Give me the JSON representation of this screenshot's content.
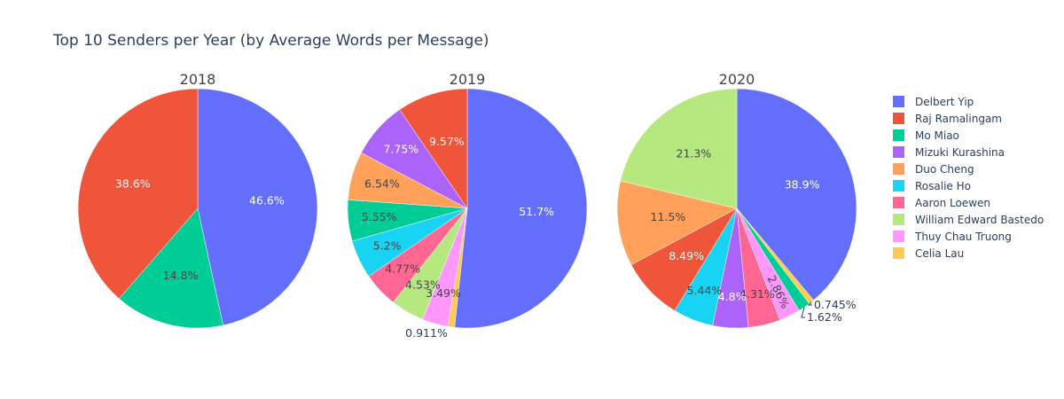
{
  "chart_data": {
    "type": "pie",
    "title": "Top 10 Senders per Year (by Average Words per Message)",
    "legend": {
      "placement": "right",
      "entries": [
        {
          "name": "Delbert Yip",
          "color": "#636efa"
        },
        {
          "name": "Raj Ramalingam",
          "color": "#ef553b"
        },
        {
          "name": "Mo Miao",
          "color": "#00cc96"
        },
        {
          "name": "Mizuki Kurashina",
          "color": "#ab63fa"
        },
        {
          "name": "Duo Cheng",
          "color": "#ffa15a"
        },
        {
          "name": "Rosalie Ho",
          "color": "#19d3f3"
        },
        {
          "name": "Aaron Loewen",
          "color": "#ff6692"
        },
        {
          "name": "William Edward Bastedo",
          "color": "#b6e880"
        },
        {
          "name": "Thuy Chau Truong",
          "color": "#ff97ff"
        },
        {
          "name": "Celia Lau",
          "color": "#fecb52"
        }
      ]
    },
    "pies": [
      {
        "subtitle": "2018",
        "slices": [
          {
            "name": "Delbert Yip",
            "percent": 46.6,
            "label": "46.6%"
          },
          {
            "name": "Mo Miao",
            "percent": 14.8,
            "label": "14.8%"
          },
          {
            "name": "Raj Ramalingam",
            "percent": 38.6,
            "label": "38.6%"
          }
        ]
      },
      {
        "subtitle": "2019",
        "slices": [
          {
            "name": "Delbert Yip",
            "percent": 51.7,
            "label": "51.7%"
          },
          {
            "name": "Celia Lau",
            "percent": 0.911,
            "label": "0.911%"
          },
          {
            "name": "Thuy Chau Truong",
            "percent": 3.49,
            "label": "3.49%"
          },
          {
            "name": "William Edward Bastedo",
            "percent": 4.53,
            "label": "4.53%"
          },
          {
            "name": "Aaron Loewen",
            "percent": 4.77,
            "label": "4.77%"
          },
          {
            "name": "Rosalie Ho",
            "percent": 5.2,
            "label": "5.2%"
          },
          {
            "name": "Mo Miao",
            "percent": 5.55,
            "label": "5.55%"
          },
          {
            "name": "Duo Cheng",
            "percent": 6.54,
            "label": "6.54%"
          },
          {
            "name": "Mizuki Kurashina",
            "percent": 7.75,
            "label": "7.75%"
          },
          {
            "name": "Raj Ramalingam",
            "percent": 9.57,
            "label": "9.57%"
          }
        ]
      },
      {
        "subtitle": "2020",
        "slices": [
          {
            "name": "Delbert Yip",
            "percent": 38.9,
            "label": "38.9%"
          },
          {
            "name": "Celia Lau",
            "percent": 0.745,
            "label": "0.745%"
          },
          {
            "name": "Mo Miao",
            "percent": 1.62,
            "label": "1.62%"
          },
          {
            "name": "Thuy Chau Truong",
            "percent": 2.86,
            "label": "2.86%"
          },
          {
            "name": "Aaron Loewen",
            "percent": 4.31,
            "label": "4.31%"
          },
          {
            "name": "Mizuki Kurashina",
            "percent": 4.8,
            "label": "4.8%"
          },
          {
            "name": "Rosalie Ho",
            "percent": 5.44,
            "label": "5.44%"
          },
          {
            "name": "Raj Ramalingam",
            "percent": 8.49,
            "label": "8.49%"
          },
          {
            "name": "Duo Cheng",
            "percent": 11.5,
            "label": "11.5%"
          },
          {
            "name": "William Edward Bastedo",
            "percent": 21.3,
            "label": "21.3%"
          }
        ]
      }
    ]
  }
}
